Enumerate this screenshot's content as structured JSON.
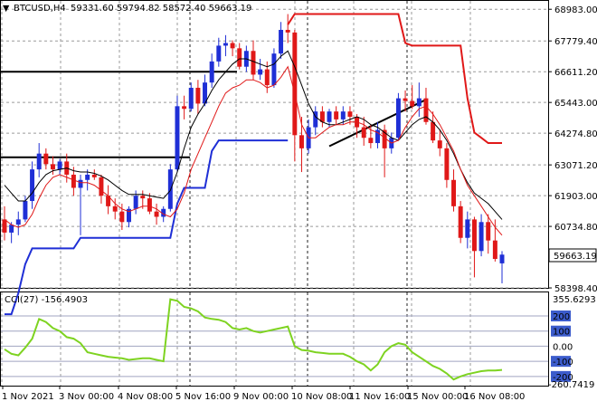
{
  "header": {
    "marker": "▼",
    "symbol_tf": "BTCUSD,H4",
    "ohlc": "59331.60 59794.82 58572.40 59663.19"
  },
  "indicator": {
    "label": "CCI(27) -156.4903",
    "top_value": "355.6293",
    "bottom_value": "-260.7419",
    "levels": [
      "200",
      "100",
      "0.00",
      "-100",
      "-200"
    ]
  },
  "colors": {
    "bull": "#1f2fd6",
    "bear": "#e01818",
    "ma_black": "#000000",
    "ma_red": "#e01818",
    "cci": "#7ed321",
    "level_line": "#a0a4c0",
    "grid": "#9a9a9a"
  },
  "chart_data": {
    "type": "candlestick",
    "instrument": "BTCUSD",
    "timeframe": "H4",
    "last_price": "59663.19",
    "price_axis_labels": [
      "68983.00",
      "67779.40",
      "66611.20",
      "65443.00",
      "64274.80",
      "63071.20",
      "61903.00",
      "60734.80",
      "59663.19",
      "58398.40"
    ],
    "price_range": [
      58400,
      69300
    ],
    "time_labels": [
      "1 Nov 2021",
      "3 Nov 00:00",
      "4 Nov 08:00",
      "5 Nov 16:00",
      "9 Nov 00:00",
      "10 Nov 08:00",
      "11 Nov 16:00",
      "15 Nov 00:00",
      "16 Nov 08:00"
    ],
    "candles": [
      [
        61000,
        61500,
        60200,
        60500
      ],
      [
        60500,
        60900,
        60100,
        60800
      ],
      [
        60800,
        61300,
        60400,
        61000
      ],
      [
        61000,
        61900,
        60900,
        61700
      ],
      [
        61700,
        63200,
        61400,
        62900
      ],
      [
        62900,
        63900,
        62600,
        63500
      ],
      [
        63500,
        63700,
        62900,
        63100
      ],
      [
        63100,
        63400,
        62700,
        62900
      ],
      [
        62900,
        63300,
        62700,
        63200
      ],
      [
        63200,
        63500,
        62400,
        62700
      ],
      [
        62700,
        63000,
        61900,
        62200
      ],
      [
        62200,
        62700,
        60400,
        62500
      ],
      [
        62500,
        62900,
        62100,
        62700
      ],
      [
        62700,
        62900,
        62500,
        62600
      ],
      [
        62600,
        62700,
        61600,
        61900
      ],
      [
        61900,
        62300,
        61200,
        61500
      ],
      [
        61500,
        61800,
        61000,
        61300
      ],
      [
        61300,
        61600,
        60600,
        60900
      ],
      [
        60900,
        61500,
        60700,
        61400
      ],
      [
        61400,
        62100,
        61200,
        61900
      ],
      [
        61900,
        62100,
        61400,
        61800
      ],
      [
        61800,
        62000,
        61200,
        61300
      ],
      [
        61300,
        61600,
        60800,
        61100
      ],
      [
        61100,
        61500,
        60900,
        61400
      ],
      [
        61400,
        63100,
        61300,
        62900
      ],
      [
        62900,
        65700,
        62800,
        65300
      ],
      [
        65300,
        65700,
        64800,
        65200
      ],
      [
        65200,
        66200,
        65100,
        66000
      ],
      [
        66000,
        66300,
        65000,
        65400
      ],
      [
        65400,
        66500,
        65300,
        66200
      ],
      [
        66200,
        67300,
        66000,
        67000
      ],
      [
        67000,
        67900,
        66800,
        67600
      ],
      [
        67600,
        68000,
        67200,
        67700
      ],
      [
        67700,
        67800,
        67200,
        67500
      ],
      [
        67500,
        67700,
        66700,
        66800
      ],
      [
        66800,
        67600,
        66600,
        67400
      ],
      [
        67400,
        67800,
        66300,
        66500
      ],
      [
        66500,
        67100,
        66300,
        66700
      ],
      [
        66700,
        67000,
        65800,
        66100
      ],
      [
        66100,
        67500,
        66000,
        67300
      ],
      [
        67300,
        68500,
        67100,
        68200
      ],
      [
        68200,
        68800,
        67700,
        68100
      ],
      [
        68100,
        68200,
        63200,
        64200
      ],
      [
        64200,
        64900,
        62800,
        63700
      ],
      [
        63700,
        64800,
        63500,
        64500
      ],
      [
        64500,
        65300,
        64200,
        65100
      ],
      [
        65100,
        65300,
        64500,
        64700
      ],
      [
        64700,
        65200,
        64500,
        65100
      ],
      [
        65100,
        65300,
        64600,
        64800
      ],
      [
        64800,
        65300,
        64600,
        65100
      ],
      [
        65100,
        65300,
        64600,
        64900
      ],
      [
        64900,
        65000,
        64100,
        64500
      ],
      [
        64500,
        64900,
        63800,
        64100
      ],
      [
        64100,
        64600,
        63700,
        63900
      ],
      [
        63900,
        64700,
        63700,
        64400
      ],
      [
        64400,
        64600,
        62600,
        63700
      ],
      [
        63700,
        64300,
        63500,
        64100
      ],
      [
        64100,
        65800,
        64000,
        65600
      ],
      [
        65600,
        65900,
        65100,
        65500
      ],
      [
        65500,
        66100,
        65200,
        65300
      ],
      [
        65300,
        66200,
        64900,
        65600
      ],
      [
        65600,
        66000,
        64600,
        64700
      ],
      [
        64700,
        65100,
        63900,
        64000
      ],
      [
        64000,
        64400,
        63400,
        63700
      ],
      [
        63700,
        63900,
        62200,
        62500
      ],
      [
        62500,
        62900,
        61300,
        61500
      ],
      [
        61500,
        61700,
        60100,
        60300
      ],
      [
        60300,
        61300,
        59900,
        61000
      ],
      [
        61000,
        61100,
        58800,
        59800
      ],
      [
        59800,
        61200,
        59600,
        60900
      ],
      [
        60900,
        61200,
        59700,
        60200
      ],
      [
        60200,
        61000,
        59400,
        59500
      ],
      [
        59331.6,
        59794.82,
        58572.4,
        59663.19
      ]
    ],
    "ma_black": [
      62300,
      62000,
      61700,
      61700,
      62000,
      62400,
      62700,
      62850,
      62900,
      62950,
      62850,
      62800,
      62800,
      62750,
      62650,
      62500,
      62300,
      62100,
      61950,
      61950,
      61950,
      61900,
      61850,
      61800,
      62100,
      62800,
      63700,
      64500,
      65000,
      65400,
      65900,
      66300,
      66600,
      66900,
      67100,
      67100,
      67000,
      66900,
      66800,
      66900,
      67200,
      67400,
      66800,
      66100,
      65400,
      64900,
      64700,
      64600,
      64600,
      64700,
      64800,
      64900,
      64800,
      64600,
      64500,
      64300,
      64100,
      64000,
      64300,
      64600,
      64800,
      64900,
      64700,
      64400,
      64000,
      63500,
      62900,
      62400,
      62000,
      61800,
      61600,
      61300,
      61000
    ],
    "ma_red": [
      61000,
      60800,
      60700,
      60800,
      61200,
      61800,
      62300,
      62600,
      62700,
      62600,
      62500,
      62400,
      62400,
      62300,
      62100,
      61900,
      61600,
      61400,
      61300,
      61400,
      61500,
      61500,
      61400,
      61200,
      61100,
      61400,
      62000,
      62900,
      63500,
      64100,
      64700,
      65300,
      65800,
      66000,
      66100,
      66300,
      66300,
      66200,
      66000,
      66100,
      66400,
      66800,
      65800,
      64600,
      64100,
      64100,
      64300,
      64500,
      64600,
      64600,
      64700,
      64700,
      64600,
      64400,
      64300,
      64100,
      63900,
      64000,
      64500,
      64900,
      65200,
      65300,
      65000,
      64600,
      64100,
      63600,
      62900,
      62300,
      61900,
      61500,
      61100,
      60700,
      60400
    ],
    "red_stop": [
      null,
      null,
      null,
      null,
      null,
      null,
      null,
      null,
      null,
      null,
      null,
      null,
      null,
      null,
      null,
      null,
      null,
      null,
      null,
      null,
      null,
      null,
      null,
      null,
      null,
      null,
      null,
      null,
      null,
      null,
      null,
      null,
      null,
      null,
      null,
      null,
      null,
      null,
      null,
      null,
      null,
      68400,
      68800,
      68800,
      68800,
      68800,
      68800,
      68800,
      68800,
      68800,
      68800,
      68800,
      68800,
      68800,
      68800,
      68800,
      68800,
      68800,
      67700,
      67600,
      67600,
      67600,
      67600,
      67600,
      67600,
      67600,
      67600,
      65600,
      64300,
      64100,
      63900,
      63900,
      63900
    ],
    "blue_stop": [
      57400,
      57400,
      58200,
      59300,
      59900,
      59900,
      59900,
      59900,
      59900,
      59900,
      59900,
      60300,
      60300,
      60300,
      60300,
      60300,
      60300,
      60300,
      60300,
      60300,
      60300,
      60300,
      60300,
      60300,
      60300,
      61600,
      62200,
      62200,
      62200,
      62200,
      63600,
      64000,
      64000,
      64000,
      64000,
      64000,
      64000,
      64000,
      64000,
      64000,
      64000,
      64000,
      null,
      null,
      null,
      null,
      null,
      null,
      null,
      null,
      null,
      null,
      null,
      null,
      null,
      null,
      null,
      null,
      null,
      null,
      null,
      null,
      null,
      null,
      null,
      null,
      null,
      null,
      null,
      null,
      null,
      null,
      null
    ],
    "cci": [
      -20,
      -50,
      -60,
      -10,
      50,
      180,
      160,
      120,
      100,
      60,
      50,
      20,
      -40,
      -50,
      -60,
      -70,
      -75,
      -80,
      -90,
      -85,
      -80,
      -80,
      -90,
      -100,
      310,
      300,
      260,
      250,
      230,
      190,
      180,
      175,
      160,
      120,
      110,
      120,
      100,
      90,
      100,
      110,
      120,
      130,
      0,
      -25,
      -30,
      -40,
      -45,
      -50,
      -50,
      -50,
      -70,
      -100,
      -120,
      -160,
      -120,
      -40,
      0,
      20,
      10,
      -40,
      -70,
      -100,
      -130,
      -150,
      -180,
      -220,
      -200,
      -185,
      -175,
      -165,
      -160,
      -160,
      -156.49
    ],
    "cci_range": [
      -260.7419,
      355.6293
    ],
    "cci_levels": [
      200,
      100,
      0,
      -100,
      -200
    ],
    "horizontal_levels": [
      66611.2,
      63360
    ],
    "trendline": [
      [
        63780,
        63700
      ],
      [
        64150,
        65550
      ]
    ]
  }
}
